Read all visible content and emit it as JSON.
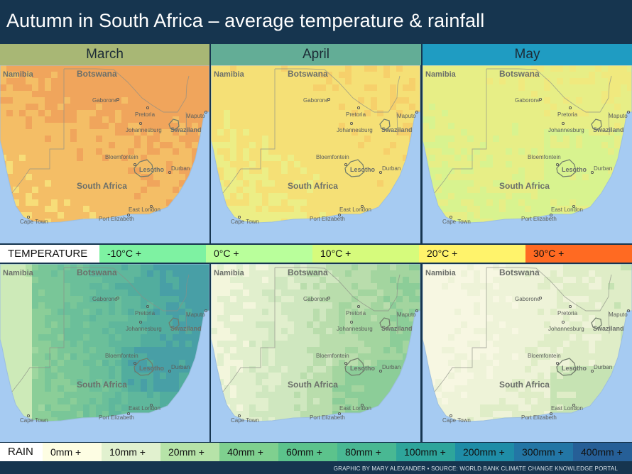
{
  "title": "Autumn in South Africa – average temperature & rainfall",
  "months": [
    {
      "name": "March",
      "header_color": "#a8b775",
      "temperature_level": "warm",
      "rainfall_level": "wet"
    },
    {
      "name": "April",
      "header_color": "#63ad96",
      "temperature_level": "mild",
      "rainfall_level": "moderate"
    },
    {
      "name": "May",
      "header_color": "#1f9cc2",
      "temperature_level": "cool",
      "rainfall_level": "dry"
    }
  ],
  "map_labels": {
    "countries": [
      "Namibia",
      "Botswana",
      "South Africa",
      "Lesotho",
      "Swaziland"
    ],
    "cities": [
      "Gaborone",
      "Pretoria",
      "Johannesburg",
      "Maputo",
      "Bloemfontein",
      "Durban",
      "East London",
      "Port Elizabeth",
      "Cape Town"
    ]
  },
  "temperature_legend": {
    "title": "TEMPERATURE",
    "items": [
      {
        "label": "-10°C +",
        "color": "#7ef2a2"
      },
      {
        "label": "0°C +",
        "color": "#b9ff9b"
      },
      {
        "label": "10°C +",
        "color": "#d6fb7c"
      },
      {
        "label": "20°C +",
        "color": "#fff36b"
      },
      {
        "label": "30°C +",
        "color": "#ff6a22"
      }
    ]
  },
  "rain_legend": {
    "title": "RAIN",
    "items": [
      {
        "label": "0mm +",
        "color": "#fdfde3"
      },
      {
        "label": "10mm +",
        "color": "#e1f1cf"
      },
      {
        "label": "20mm +",
        "color": "#b6e3a8"
      },
      {
        "label": "40mm +",
        "color": "#7fd08f"
      },
      {
        "label": "60mm +",
        "color": "#5cc38c"
      },
      {
        "label": "80mm +",
        "color": "#49b893"
      },
      {
        "label": "100mm +",
        "color": "#2ea59b"
      },
      {
        "label": "200mm +",
        "color": "#1f8da7"
      },
      {
        "label": "300mm +",
        "color": "#2376a5"
      },
      {
        "label": "400mm +",
        "color": "#265f97"
      }
    ]
  },
  "credit": "GRAPHIC BY MARY ALEXANDER • SOURCE: WORLD BANK CLIMATE CHANGE KNOWLEDGE PORTAL"
}
